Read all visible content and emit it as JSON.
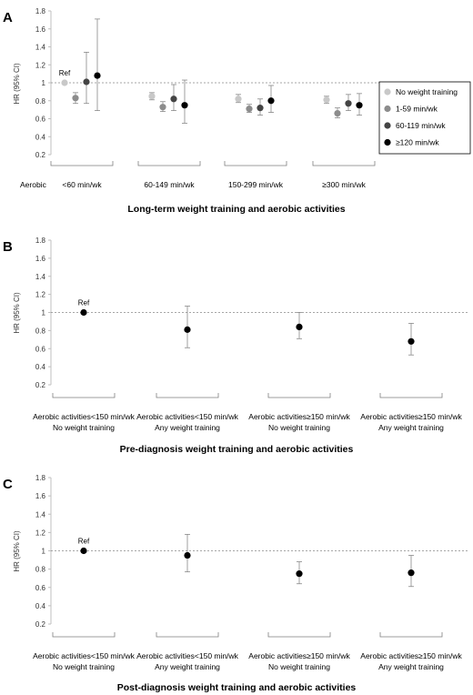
{
  "chart_data": [
    {
      "panel_label": "A",
      "type": "scatter",
      "subtype": "point-with-error-bars",
      "title": "Long-term weight training and aerobic activities",
      "ylabel": "HR (95% CI)",
      "xlabel": "",
      "row_prefix": "Aerobic",
      "ylim": [
        0.2,
        1.8
      ],
      "yticks": [
        0.2,
        0.4,
        0.6,
        0.8,
        1,
        1.2,
        1.4,
        1.6,
        1.8
      ],
      "reference_line": 1,
      "grid": false,
      "legend_position": "right",
      "categories": [
        {
          "lines": [
            "<60 min/wk"
          ]
        },
        {
          "lines": [
            "60-149 min/wk"
          ]
        },
        {
          "lines": [
            "150-299 min/wk"
          ]
        },
        {
          "lines": [
            "≥300 min/wk"
          ]
        }
      ],
      "series": [
        {
          "name": "No weight training",
          "color": "#c8c8c8",
          "points": [
            {
              "y": 1.0,
              "lo": 1.0,
              "hi": 1.0,
              "label": "Ref"
            },
            {
              "y": 0.85,
              "lo": 0.81,
              "hi": 0.89
            },
            {
              "y": 0.82,
              "lo": 0.78,
              "hi": 0.87
            },
            {
              "y": 0.81,
              "lo": 0.77,
              "hi": 0.85
            }
          ]
        },
        {
          "name": "1-59 min/wk",
          "color": "#8c8c8c",
          "points": [
            {
              "y": 0.83,
              "lo": 0.77,
              "hi": 0.89
            },
            {
              "y": 0.73,
              "lo": 0.68,
              "hi": 0.79
            },
            {
              "y": 0.71,
              "lo": 0.67,
              "hi": 0.76
            },
            {
              "y": 0.66,
              "lo": 0.61,
              "hi": 0.72
            }
          ]
        },
        {
          "name": "60-119 min/wk",
          "color": "#444444",
          "points": [
            {
              "y": 1.01,
              "lo": 0.77,
              "hi": 1.34
            },
            {
              "y": 0.82,
              "lo": 0.69,
              "hi": 0.98
            },
            {
              "y": 0.72,
              "lo": 0.64,
              "hi": 0.82
            },
            {
              "y": 0.77,
              "lo": 0.69,
              "hi": 0.87
            }
          ]
        },
        {
          "name": "≥120 min/wk",
          "color": "#000000",
          "points": [
            {
              "y": 1.08,
              "lo": 0.69,
              "hi": 1.71
            },
            {
              "y": 0.75,
              "lo": 0.55,
              "hi": 1.03
            },
            {
              "y": 0.8,
              "lo": 0.67,
              "hi": 0.97
            },
            {
              "y": 0.75,
              "lo": 0.64,
              "hi": 0.88
            }
          ]
        }
      ]
    },
    {
      "panel_label": "B",
      "type": "scatter",
      "subtype": "point-with-error-bars",
      "title": "Pre-diagnosis weight training and aerobic activities",
      "ylabel": "HR (95% CI)",
      "xlabel": "",
      "ylim": [
        0.2,
        1.8
      ],
      "yticks": [
        0.2,
        0.4,
        0.6,
        0.8,
        1,
        1.2,
        1.4,
        1.6,
        1.8
      ],
      "reference_line": 1,
      "grid": false,
      "categories": [
        {
          "lines": [
            "Aerobic activities<150 min/wk",
            "No weight training"
          ]
        },
        {
          "lines": [
            "Aerobic activities<150 min/wk",
            "Any weight training"
          ]
        },
        {
          "lines": [
            "Aerobic activities≥150 min/wk",
            "No weight training"
          ]
        },
        {
          "lines": [
            "Aerobic activities≥150 min/wk",
            "Any weight training"
          ]
        }
      ],
      "series": [
        {
          "color": "#000000",
          "points": [
            {
              "y": 1.0,
              "lo": 1.0,
              "hi": 1.0,
              "label": "Ref"
            },
            {
              "y": 0.81,
              "lo": 0.61,
              "hi": 1.07
            },
            {
              "y": 0.84,
              "lo": 0.71,
              "hi": 1.0
            },
            {
              "y": 0.68,
              "lo": 0.53,
              "hi": 0.88
            }
          ]
        }
      ]
    },
    {
      "panel_label": "C",
      "type": "scatter",
      "subtype": "point-with-error-bars",
      "title": "Post-diagnosis weight training and aerobic activities",
      "ylabel": "HR (95% CI)",
      "xlabel": "",
      "ylim": [
        0.2,
        1.8
      ],
      "yticks": [
        0.2,
        0.4,
        0.6,
        0.8,
        1,
        1.2,
        1.4,
        1.6,
        1.8
      ],
      "reference_line": 1,
      "grid": false,
      "categories": [
        {
          "lines": [
            "Aerobic activities<150 min/wk",
            "No weight training"
          ]
        },
        {
          "lines": [
            "Aerobic activities<150 min/wk",
            "Any weight training"
          ]
        },
        {
          "lines": [
            "Aerobic activities≥150 min/wk",
            "No weight training"
          ]
        },
        {
          "lines": [
            "Aerobic activities≥150 min/wk",
            "Any weight training"
          ]
        }
      ],
      "series": [
        {
          "color": "#000000",
          "points": [
            {
              "y": 1.0,
              "lo": 1.0,
              "hi": 1.0,
              "label": "Ref"
            },
            {
              "y": 0.95,
              "lo": 0.77,
              "hi": 1.18
            },
            {
              "y": 0.75,
              "lo": 0.64,
              "hi": 0.88
            },
            {
              "y": 0.76,
              "lo": 0.61,
              "hi": 0.95
            }
          ]
        }
      ]
    }
  ]
}
